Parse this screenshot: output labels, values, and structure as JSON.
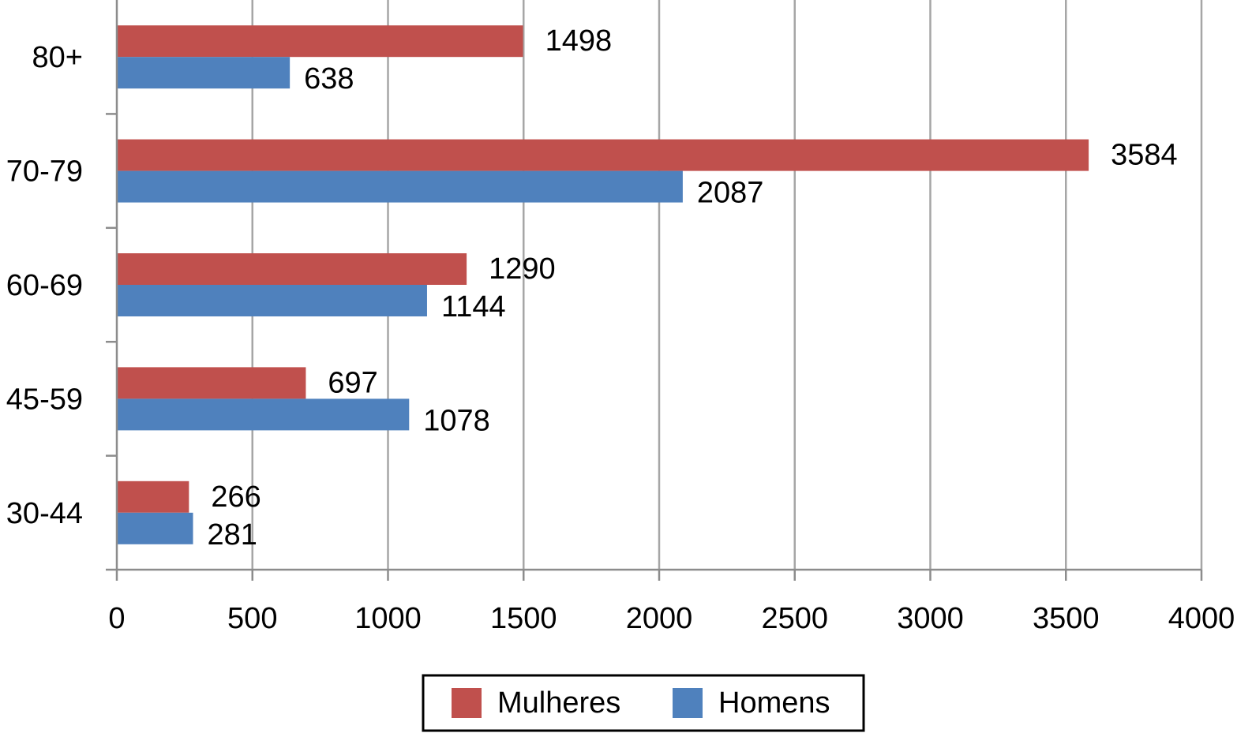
{
  "chart_data": {
    "type": "bar",
    "orientation": "horizontal",
    "categories": [
      "80+",
      "70-79",
      "60-69",
      "45-59",
      "30-44"
    ],
    "series": [
      {
        "name": "Mulheres",
        "values": [
          1498,
          3584,
          1290,
          697,
          266
        ]
      },
      {
        "name": "Homens",
        "values": [
          638,
          2087,
          1144,
          1078,
          281
        ]
      }
    ],
    "xlim": [
      0,
      4000
    ],
    "xticks": [
      0,
      500,
      1000,
      1500,
      2000,
      2500,
      3000,
      3500,
      4000
    ],
    "xtick_labels": [
      "0",
      "500",
      "1000",
      "1500",
      "2000",
      "2500",
      "3000",
      "3500",
      "4000"
    ],
    "grid": "vertical",
    "legend": "bottom-center",
    "colors": {
      "Mulheres": "#c0504d",
      "Homens": "#4f81bd",
      "grid": "#a6a6a6",
      "axis": "#8c8c8c"
    },
    "title": "",
    "xlabel": "",
    "ylabel": ""
  }
}
